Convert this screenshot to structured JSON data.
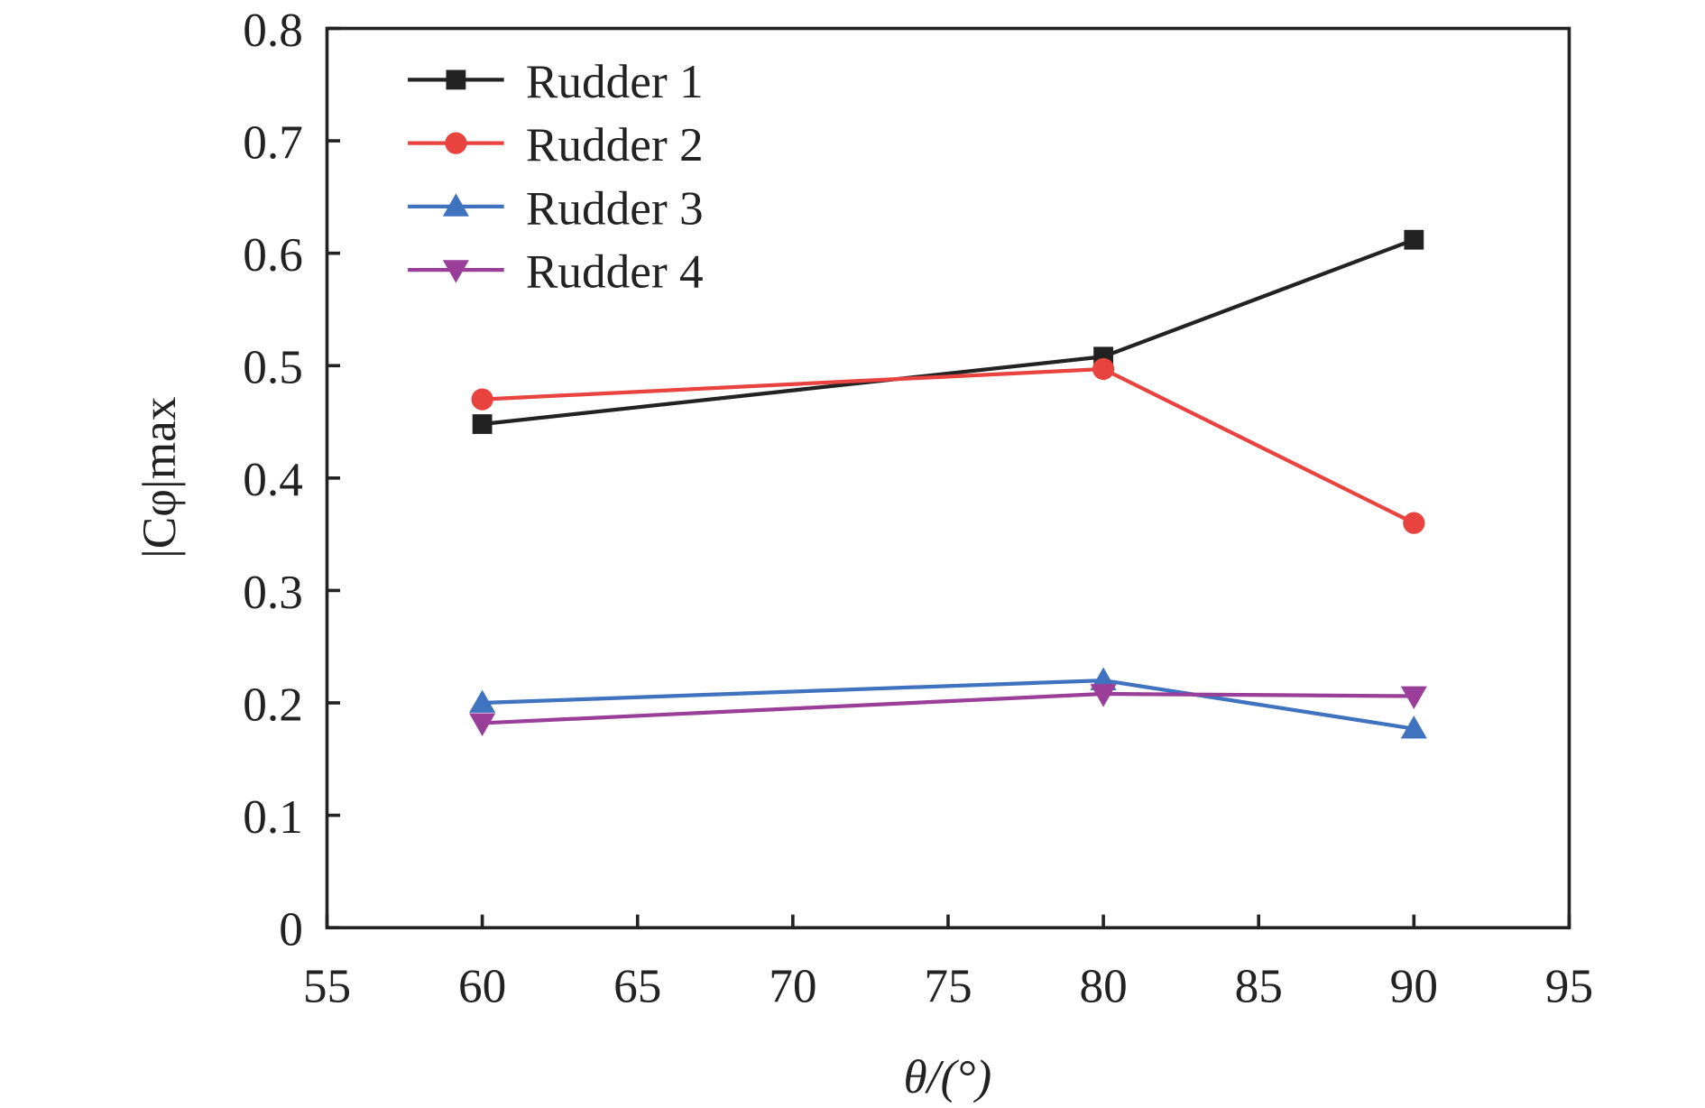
{
  "chart_data": {
    "type": "line",
    "xlabel": "θ/(°)",
    "ylabel": "|Cφ|max",
    "xlim": [
      55,
      95
    ],
    "ylim": [
      0,
      0.8
    ],
    "xticks": [
      "55",
      "60",
      "65",
      "70",
      "75",
      "80",
      "85",
      "90",
      "95"
    ],
    "yticks": [
      "0",
      "0.1",
      "0.2",
      "0.3",
      "0.4",
      "0.5",
      "0.6",
      "0.7",
      "0.8"
    ],
    "grid": false,
    "legend_position": "top-left",
    "x": [
      60,
      80,
      90
    ],
    "series": [
      {
        "name": "Rudder 1",
        "values": [
          0.448,
          0.508,
          0.612
        ],
        "color": "#222222",
        "marker": "square"
      },
      {
        "name": "Rudder 2",
        "values": [
          0.47,
          0.497,
          0.36
        ],
        "color": "#e8433f",
        "marker": "circle"
      },
      {
        "name": "Rudder 3",
        "values": [
          0.2,
          0.22,
          0.177
        ],
        "color": "#3f72bf",
        "marker": "triangle-up"
      },
      {
        "name": "Rudder 4",
        "values": [
          0.182,
          0.208,
          0.206
        ],
        "color": "#9a3f99",
        "marker": "triangle-down"
      }
    ]
  }
}
